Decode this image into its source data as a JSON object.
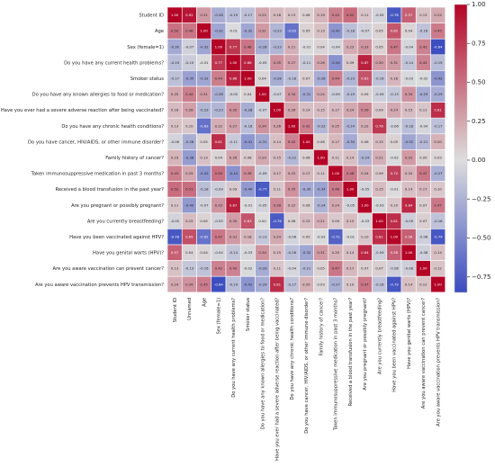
{
  "chart_data": {
    "type": "heatmap",
    "title": "",
    "row_labels": [
      "Student ID",
      "Age",
      "Sex (female=1)",
      "Do you have any current health problems?",
      "Smoker status",
      "Do you have any known allergies to food or medication?",
      "Have you ever had a severe adverse reaction after being vaccinated?",
      "Do you have any chronic health conditions?",
      "Do you have cancer, HIV/AIDS, or other immune disorder?",
      "Family history of cancer?",
      "Taken immunosuppressive medication in past 3 months?",
      "Received a blood transfusion in the past year?",
      "Are you pregnant or possibly pregnant?",
      "Are you currently breastfeeding?",
      "Have you been vaccinated against HPV?",
      "Have you genital warts (HPV)?",
      "Are you aware vaccination can prevent cancer?",
      "Are you aware vaccination prevents HPV transmission?"
    ],
    "column_labels": [
      "Student ID",
      "Unnamed",
      "Age",
      "Sex (female=1)",
      "Do you have any current health problems?",
      "Smoker status",
      "Do you have any known allergies to food or medication?",
      "Have you ever had a severe adverse reaction after being vaccinated?",
      "Do you have any chronic health conditions?",
      "Do you have cancer, HIV/AIDS, or other immune disorder?",
      "Family history of cancer?",
      "Taken immunosuppressive medication in past 3 months?",
      "Received a blood transfusion in the past year?",
      "Are you pregnant or possibly pregnant?",
      "Are you currently breastfeeding?",
      "Have you been vaccinated against HPV?",
      "Have you genital warts (HPV)?",
      "Are you aware vaccination can prevent cancer?",
      "Are you aware vaccination prevents HPV transmission?"
    ],
    "values": [
      [
        1.0,
        0.92,
        0.31,
        -0.28,
        -0.19,
        -0.17,
        0.25,
        0.16,
        0.13,
        0.06,
        0.19,
        0.43,
        0.52,
        0.11,
        -0.05,
        -0.78,
        0.57,
        0.13,
        0.24
      ],
      [
        0.5,
        0.48,
        1.0,
        -0.32,
        -0.01,
        -0.32,
        0.31,
        -0.23,
        -0.63,
        0.05,
        0.13,
        -0.42,
        -0.18,
        -0.07,
        0.05,
        0.62,
        0.04,
        -0.16,
        0.45
      ],
      [
        -0.3,
        -0.07,
        -0.32,
        1.0,
        0.77,
        0.48,
        -0.28,
        -0.23,
        0.21,
        -0.01,
        0.04,
        -0.04,
        0.23,
        0.33,
        0.05,
        0.47,
        -0.04,
        0.42,
        -0.84
      ],
      [
        -0.19,
        -0.1,
        -0.01,
        0.77,
        1.0,
        0.86,
        -0.05,
        0.35,
        0.27,
        -0.11,
        0.26,
        -0.44,
        0.09,
        0.87,
        0.3,
        0.31,
        -0.14,
        0.42,
        -0.19
      ],
      [
        -0.17,
        -0.35,
        -0.32,
        0.44,
        0.86,
        1.0,
        0.04,
        -0.28,
        -0.18,
        0.07,
        -0.28,
        0.44,
        -0.23,
        0.63,
        -0.16,
        0.18,
        -0.03,
        -0.02,
        -0.42
      ],
      [
        0.25,
        0.44,
        0.31,
        -0.28,
        -0.05,
        0.04,
        1.0,
        -0.07,
        0.34,
        -0.31,
        0.24,
        -0.09,
        -0.19,
        0.05,
        -0.09,
        -0.13,
        0.34,
        -0.29,
        -0.29
      ],
      [
        0.16,
        0.28,
        -0.23,
        -0.23,
        0.35,
        -0.28,
        -0.07,
        1.0,
        0.26,
        0.14,
        0.15,
        0.17,
        0.24,
        0.39,
        0.09,
        0.24,
        0.15,
        0.11,
        0.81
      ],
      [
        0.13,
        0.1,
        -0.63,
        0.22,
        0.27,
        -0.18,
        0.34,
        0.26,
        1.0,
        0.42,
        -0.22,
        0.25,
        -0.24,
        0.22,
        0.76,
        -0.06,
        -0.18,
        -0.04,
        -0.17
      ],
      [
        -0.06,
        -0.28,
        0.05,
        0.81,
        -0.11,
        -0.41,
        -0.31,
        0.14,
        0.42,
        1.0,
        0.06,
        0.17,
        -0.3,
        0.06,
        0.15,
        0.05,
        -0.32,
        -0.21,
        0.2
      ],
      [
        0.19,
        -0.38,
        0.13,
        0.04,
        0.26,
        0.08,
        0.24,
        0.15,
        -0.22,
        0.06,
        1.0,
        0.11,
        0.14,
        -0.24,
        0.21,
        -0.02,
        0.31,
        0.05,
        0.03
      ],
      [
        0.43,
        0.25,
        -0.42,
        0.5,
        -0.44,
        0.38,
        -0.09,
        0.17,
        0.25,
        0.17,
        0.11,
        1.0,
        0.46,
        0.24,
        0.09,
        0.72,
        0.2,
        0.47,
        -0.27
      ],
      [
        0.52,
        0.51,
        -0.18,
        -0.09,
        0.09,
        -0.4,
        -0.77,
        0.11,
        0.35,
        -0.3,
        -0.34,
        0.46,
        1.0,
        -0.05,
        0.15,
        -0.01,
        0.14,
        0.17,
        0.1
      ],
      [
        0.11,
        -0.4,
        -0.07,
        0.33,
        0.87,
        -0.01,
        -0.05,
        0.39,
        0.22,
        0.06,
        -0.24,
        0.24,
        -0.05,
        1.0,
        -0.03,
        0.1,
        0.84,
        0.07,
        0.47
      ],
      [
        -0.05,
        0.15,
        0.05,
        -0.05,
        0.3,
        0.63,
        -0.0,
        -0.76,
        0.06,
        0.15,
        0.21,
        0.09,
        0.15,
        -0.03,
        1.0,
        0.81,
        -0.09,
        0.07,
        -0.16
      ],
      [
        -0.78,
        0.65,
        -0.62,
        0.47,
        0.31,
        0.18,
        -0.13,
        0.24,
        -0.06,
        0.05,
        -0.02,
        -0.72,
        -0.01,
        0.1,
        0.81,
        1.0,
        0.58,
        -0.08,
        -0.79
      ],
      [
        0.57,
        0.04,
        0.04,
        -0.04,
        -0.14,
        -0.03,
        0.34,
        0.15,
        -0.18,
        -0.32,
        0.31,
        0.2,
        0.14,
        0.84,
        -0.09,
        0.58,
        1.0,
        -0.08,
        0.14
      ],
      [
        0.13,
        -0.13,
        -0.16,
        0.42,
        0.42,
        -0.02,
        -0.29,
        0.11,
        -0.04,
        -0.21,
        0.05,
        0.47,
        0.17,
        0.07,
        0.07,
        -0.08,
        -0.08,
        1.0,
        0.12
      ],
      [
        0.24,
        0.34,
        0.45,
        -0.84,
        -0.19,
        -0.42,
        -0.29,
        0.81,
        -0.17,
        0.2,
        0.03,
        -0.27,
        0.1,
        0.47,
        -0.16,
        -0.79,
        0.14,
        0.12,
        1.0
      ]
    ],
    "color_scale": {
      "min": -0.85,
      "max": 1.0,
      "low_color": "#3b4cc0",
      "mid_color": "#dddddd",
      "high_color": "#b40426"
    },
    "colorbar_ticks": [
      1.0,
      0.75,
      0.5,
      0.25,
      0.0,
      -0.25,
      -0.5,
      -0.75
    ],
    "grid": true,
    "legend": "colorbar-right"
  }
}
